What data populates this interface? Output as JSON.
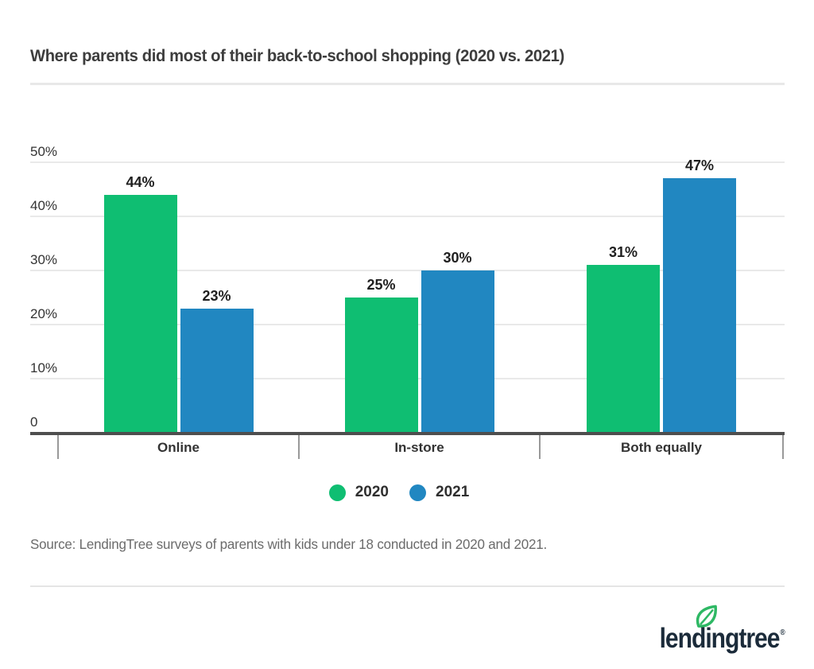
{
  "header": {
    "title": "Where parents did most of their back-to-school shopping (2020 vs. 2021)"
  },
  "chart_data": {
    "type": "bar",
    "title": "Where parents did most of their back-to-school shopping (2020 vs. 2021)",
    "categories": [
      "Online",
      "In-store",
      "Both equally"
    ],
    "series": [
      {
        "name": "2020",
        "color": "#0fbe72",
        "values": [
          44,
          25,
          31
        ]
      },
      {
        "name": "2021",
        "color": "#2187c1",
        "values": [
          23,
          30,
          47
        ]
      }
    ],
    "value_suffix": "%",
    "value_labels": [
      [
        "44%",
        "25%",
        "31%"
      ],
      [
        "23%",
        "30%",
        "47%"
      ]
    ],
    "ylim": [
      0,
      50
    ],
    "ytick_values": [
      0,
      10,
      20,
      30,
      40,
      50
    ],
    "ytick_labels": [
      "0",
      "10%",
      "20%",
      "30%",
      "40%",
      "50%"
    ],
    "grid": true,
    "legend_position": "bottom"
  },
  "footer": {
    "source": "Source: LendingTree surveys of parents with kids under 18 conducted in 2020 and 2021.",
    "logo": {
      "text": "lendingtree",
      "registered": "®",
      "color": "#1b2b3a",
      "leaf_color": "#2eb864"
    }
  }
}
